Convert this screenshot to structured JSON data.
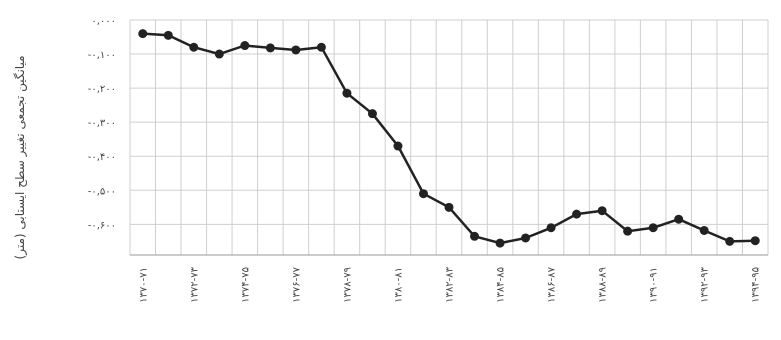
{
  "chart_data": {
    "type": "line",
    "title": "",
    "xlabel": "",
    "ylabel": "میانگین تجمعی تغییر سطح ایستابی (متر)",
    "ylim": [
      -0.6,
      0.0
    ],
    "yticks": [
      0.0,
      -0.1,
      -0.2,
      -0.3,
      -0.4,
      -0.5,
      -0.6
    ],
    "ytick_labels": [
      "۰,۰۰۰",
      "-۰,۱۰۰",
      "-۰,۲۰۰",
      "-۰,۳۰۰",
      "-۰,۴۰۰",
      "-۰,۵۰۰",
      "-۰,۶۰۰"
    ],
    "grid": true,
    "categories": [
      "۱۳۷۰-۷۱",
      "۱۳۷۱-۷۲",
      "۱۳۷۲-۷۳",
      "۱۳۷۳-۷۴",
      "۱۳۷۴-۷۵",
      "۱۳۷۵-۷۶",
      "۱۳۷۶-۷۷",
      "۱۳۷۷-۷۸",
      "۱۳۷۸-۷۹",
      "۱۳۷۹-۸۰",
      "۱۳۸۰-۸۱",
      "۱۳۸۱-۸۲",
      "۱۳۸۲-۸۳",
      "۱۳۸۳-۸۴",
      "۱۳۸۴-۸۵",
      "۱۳۸۵-۸۶",
      "۱۳۸۶-۸۷",
      "۱۳۸۷-۸۸",
      "۱۳۸۸-۸۹",
      "۱۳۸۹-۹۰",
      "۱۳۹۰-۹۱",
      "۱۳۹۱-۹۲",
      "۱۳۹۲-۹۳",
      "۱۳۹۳-۹۴",
      "۱۳۹۴-۹۵"
    ],
    "x_tick_labels_shown": [
      "۱۳۷۰-۷۱",
      "۱۳۷۲-۷۳",
      "۱۳۷۴-۷۵",
      "۱۳۷۶-۷۷",
      "۱۳۷۸-۷۹",
      "۱۳۸۰-۸۱",
      "۱۳۸۲-۸۳",
      "۱۳۸۴-۸۵",
      "۱۳۸۶-۸۷",
      "۱۳۸۸-۸۹",
      "۱۳۹۰-۹۱",
      "۱۳۹۲-۹۳",
      "۱۳۹۴-۹۵"
    ],
    "series": [
      {
        "values": [
          -0.04,
          -0.045,
          -0.08,
          -0.1,
          -0.075,
          -0.082,
          -0.088,
          -0.08,
          -0.215,
          -0.275,
          -0.37,
          -0.51,
          -0.55,
          -0.635,
          -0.655,
          -0.64,
          -0.61,
          -0.57,
          -0.56,
          -0.62,
          -0.61,
          -0.585,
          -0.618,
          -0.65,
          -0.648
        ]
      }
    ],
    "colors": {
      "line": "#222222",
      "grid": "#cfcfcf"
    }
  }
}
